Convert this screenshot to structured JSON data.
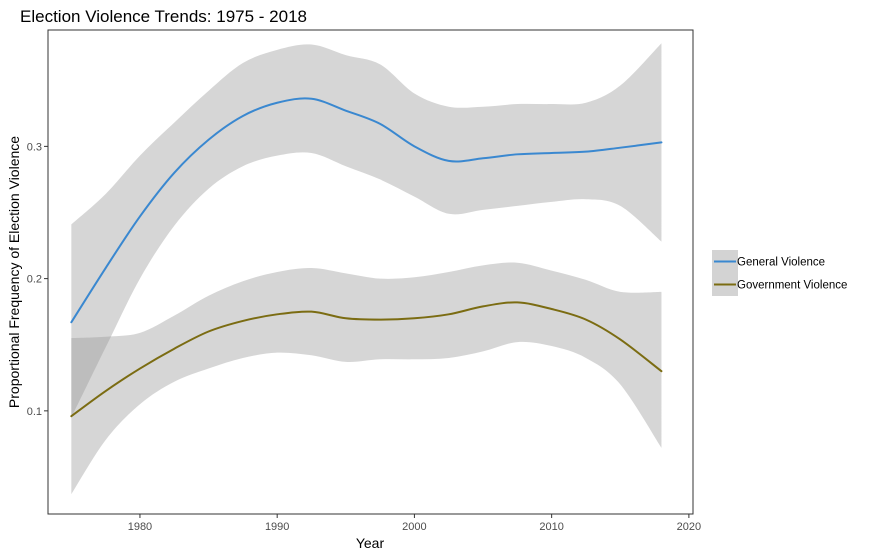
{
  "chart_data": {
    "type": "line",
    "title": "Election Violence Trends: 1975 - 2018",
    "xlabel": "Year",
    "ylabel": "Proportional Frequency of Election Violence",
    "xlim": [
      1973.3,
      2020.3
    ],
    "ylim": [
      0.022,
      0.388
    ],
    "x_ticks": [
      1980,
      1990,
      2000,
      2010,
      2020
    ],
    "x_tick_labels": [
      "1980",
      "1990",
      "2000",
      "2010",
      "2020"
    ],
    "y_ticks": [
      0.1,
      0.2,
      0.3
    ],
    "y_tick_labels": [
      "0.1",
      "0.2",
      "0.3"
    ],
    "grid": false,
    "legend_position": "right",
    "confidence_band_color": "#d3d3d3",
    "series": [
      {
        "name": "General Violence",
        "color": "#3a88d0",
        "x": [
          1975,
          1977.5,
          1980,
          1982.5,
          1985,
          1987.5,
          1990,
          1992.5,
          1995,
          1997.5,
          2000,
          2002.5,
          2005,
          2007.5,
          2010,
          2012.5,
          2015,
          2018
        ],
        "values": [
          0.167,
          0.208,
          0.247,
          0.28,
          0.305,
          0.323,
          0.333,
          0.336,
          0.327,
          0.317,
          0.3,
          0.289,
          0.291,
          0.294,
          0.295,
          0.296,
          0.299,
          0.303
        ],
        "lower": [
          0.095,
          0.148,
          0.2,
          0.24,
          0.268,
          0.285,
          0.293,
          0.295,
          0.285,
          0.275,
          0.262,
          0.249,
          0.252,
          0.255,
          0.258,
          0.26,
          0.255,
          0.228
        ],
        "upper": [
          0.241,
          0.264,
          0.293,
          0.318,
          0.342,
          0.363,
          0.373,
          0.377,
          0.369,
          0.362,
          0.34,
          0.33,
          0.33,
          0.332,
          0.332,
          0.333,
          0.346,
          0.378
        ]
      },
      {
        "name": "Government Violence",
        "color": "#7b6c12",
        "x": [
          1975,
          1977.5,
          1980,
          1982.5,
          1985,
          1987.5,
          1990,
          1992.5,
          1995,
          1997.5,
          2000,
          2002.5,
          2005,
          2007.5,
          2010,
          2012.5,
          2015,
          2018
        ],
        "values": [
          0.096,
          0.115,
          0.132,
          0.147,
          0.16,
          0.168,
          0.173,
          0.175,
          0.17,
          0.169,
          0.17,
          0.173,
          0.179,
          0.182,
          0.177,
          0.169,
          0.154,
          0.13
        ],
        "lower": [
          0.037,
          0.078,
          0.105,
          0.122,
          0.132,
          0.14,
          0.144,
          0.142,
          0.137,
          0.139,
          0.139,
          0.14,
          0.145,
          0.152,
          0.149,
          0.14,
          0.12,
          0.072
        ],
        "upper": [
          0.155,
          0.156,
          0.159,
          0.172,
          0.187,
          0.198,
          0.205,
          0.208,
          0.204,
          0.2,
          0.201,
          0.205,
          0.21,
          0.212,
          0.206,
          0.199,
          0.19,
          0.19
        ]
      }
    ]
  }
}
